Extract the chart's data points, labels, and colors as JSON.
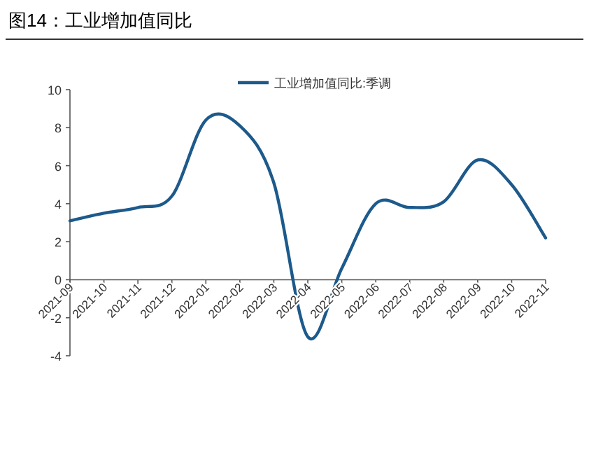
{
  "chart_data": {
    "type": "line",
    "title": "图14：工业增加值同比",
    "categories": [
      "2021-09",
      "2021-10",
      "2021-11",
      "2021-12",
      "2022-01",
      "2022-02",
      "2022-03",
      "2022-04",
      "2022-05",
      "2022-06",
      "2022-07",
      "2022-08",
      "2022-09",
      "2022-10",
      "2022-11"
    ],
    "series": [
      {
        "name": "工业增加值同比:季调",
        "color": "#1d5a8c",
        "values": [
          3.1,
          3.5,
          3.8,
          4.4,
          8.4,
          8.1,
          5.1,
          -3.0,
          0.6,
          4.0,
          3.8,
          4.1,
          6.3,
          5.0,
          2.2
        ]
      }
    ],
    "ylim": [
      -4,
      10
    ],
    "yticks": [
      -4,
      -2,
      0,
      2,
      4,
      6,
      8,
      10
    ],
    "grid": false,
    "legend": "top",
    "marker": "none",
    "line_style": "solid"
  }
}
